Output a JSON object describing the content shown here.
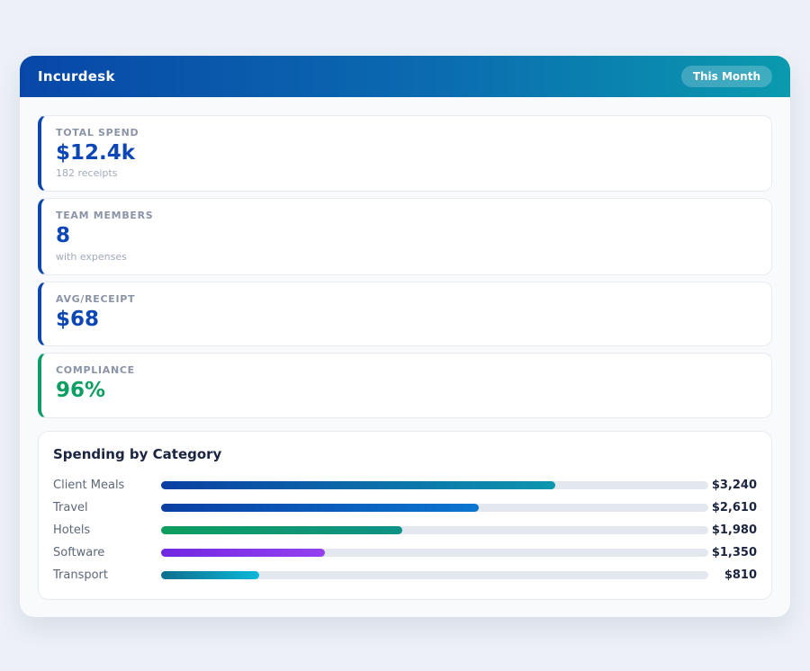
{
  "header": {
    "title": "Incurdesk",
    "badge": "This Month"
  },
  "stats": [
    {
      "label": "TOTAL SPEND",
      "value": "$12.4k",
      "sub": "182 receipts",
      "accent": "#0c47ad",
      "value_color": "#0d47b5"
    },
    {
      "label": "TEAM MEMBERS",
      "value": "8",
      "sub": "with expenses",
      "accent": "#0c47ad",
      "value_color": "#0d47b5"
    },
    {
      "label": "AVG/RECEIPT",
      "value": "$68",
      "sub": "",
      "accent": "#0c47ad",
      "value_color": "#0d47b5"
    },
    {
      "label": "COMPLIANCE",
      "value": "96%",
      "sub": "",
      "accent": "#0e9d66",
      "value_color": "#0d9e63"
    }
  ],
  "chart_data": {
    "type": "bar",
    "orientation": "horizontal",
    "title": "Spending by Category",
    "categories": [
      "Client Meals",
      "Travel",
      "Hotels",
      "Software",
      "Transport"
    ],
    "values": [
      3240,
      2610,
      1980,
      1350,
      810
    ],
    "value_labels": [
      "$3,240",
      "$2,610",
      "$1,980",
      "$1,350",
      "$810"
    ],
    "xlim": [
      0,
      4500
    ],
    "grid": false,
    "legend": false,
    "track_color": "#e3e8ef",
    "bar_gradients": [
      [
        "#0a3fa3",
        "#0d96ae"
      ],
      [
        "#0a3fa3",
        "#0b76d1"
      ],
      [
        "#0d9e5f",
        "#0d9186"
      ],
      [
        "#7028e0",
        "#9440f0"
      ],
      [
        "#0f6e8d",
        "#0bb8d8"
      ]
    ]
  }
}
